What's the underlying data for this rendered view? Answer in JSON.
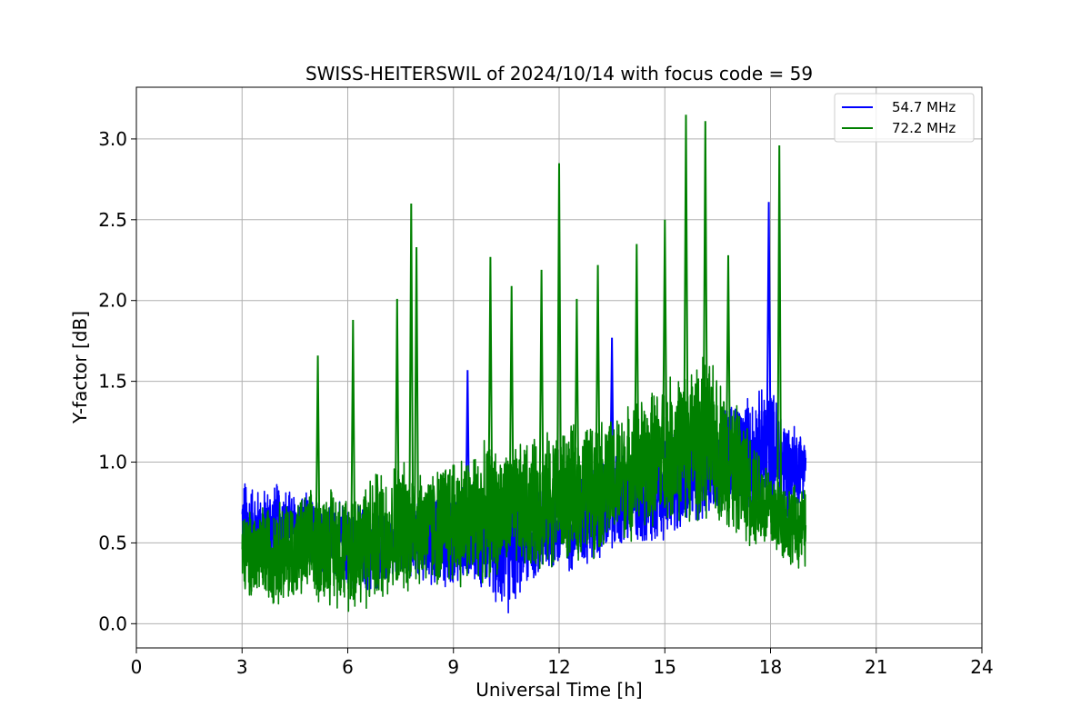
{
  "chart_data": {
    "type": "line",
    "title": "SWISS-HEITERSWIL of 2024/10/14 with focus code = 59",
    "xlabel": "Universal Time [h]",
    "ylabel": "Y-factor [dB]",
    "xlim": [
      0,
      24
    ],
    "ylim": [
      -0.15,
      3.32
    ],
    "xticks": [
      0,
      3,
      6,
      9,
      12,
      15,
      18,
      21,
      24
    ],
    "xtick_labels": [
      "0",
      "3",
      "6",
      "9",
      "12",
      "15",
      "18",
      "21",
      "24"
    ],
    "yticks": [
      0.0,
      0.5,
      1.0,
      1.5,
      2.0,
      2.5,
      3.0
    ],
    "ytick_labels": [
      "0.0",
      "0.5",
      "1.0",
      "1.5",
      "2.0",
      "2.5",
      "3.0"
    ],
    "grid": true,
    "legend_position": "top-right",
    "series": [
      {
        "name": "54.7 MHz",
        "color": "#0000ff",
        "x": [
          3.0,
          3.5,
          4.0,
          4.5,
          5.0,
          5.5,
          6.0,
          6.5,
          7.0,
          7.5,
          8.0,
          8.5,
          9.0,
          9.5,
          10.0,
          10.5,
          11.0,
          11.5,
          12.0,
          12.5,
          13.0,
          13.5,
          14.0,
          14.5,
          15.0,
          15.5,
          16.0,
          16.5,
          17.0,
          17.5,
          18.0,
          18.5,
          19.0
        ],
        "low": [
          0.25,
          0.3,
          0.3,
          0.3,
          0.3,
          0.3,
          0.2,
          0.15,
          0.2,
          0.25,
          0.25,
          0.2,
          0.2,
          0.25,
          0.15,
          0.0,
          0.2,
          0.25,
          0.3,
          0.3,
          0.35,
          0.4,
          0.45,
          0.45,
          0.5,
          0.55,
          0.6,
          0.65,
          0.7,
          0.65,
          0.7,
          0.6,
          0.8
        ],
        "high": [
          0.95,
          0.85,
          0.9,
          0.85,
          0.8,
          0.8,
          0.75,
          0.75,
          0.7,
          0.7,
          0.8,
          0.8,
          0.85,
          0.9,
          0.85,
          0.9,
          0.9,
          0.95,
          0.95,
          1.0,
          1.0,
          1.1,
          1.1,
          1.15,
          1.2,
          1.3,
          1.35,
          1.4,
          1.4,
          1.45,
          1.5,
          1.3,
          1.2
        ],
        "spikes": [
          {
            "x": 9.4,
            "y": 1.57
          },
          {
            "x": 13.5,
            "y": 1.77
          },
          {
            "x": 17.95,
            "y": 2.61
          }
        ]
      },
      {
        "name": "72.2 MHz",
        "color": "#008000",
        "x": [
          3.0,
          3.5,
          4.0,
          4.5,
          5.0,
          5.5,
          6.0,
          6.5,
          7.0,
          7.5,
          8.0,
          8.5,
          9.0,
          9.5,
          10.0,
          10.5,
          11.0,
          11.5,
          12.0,
          12.5,
          13.0,
          13.5,
          14.0,
          14.5,
          15.0,
          15.5,
          16.0,
          16.5,
          17.0,
          17.5,
          18.0,
          18.5,
          19.0
        ],
        "low": [
          0.15,
          0.1,
          0.1,
          0.1,
          0.1,
          0.1,
          0.05,
          0.05,
          0.1,
          0.15,
          0.2,
          0.2,
          0.2,
          0.2,
          0.25,
          0.3,
          0.3,
          0.3,
          0.35,
          0.35,
          0.4,
          0.45,
          0.5,
          0.55,
          0.6,
          0.6,
          0.6,
          0.6,
          0.5,
          0.45,
          0.4,
          0.35,
          0.3
        ],
        "high": [
          0.7,
          0.75,
          0.8,
          0.8,
          0.85,
          0.9,
          0.85,
          0.95,
          1.0,
          1.05,
          1.0,
          1.0,
          1.1,
          1.1,
          1.15,
          1.1,
          1.15,
          1.2,
          1.25,
          1.25,
          1.3,
          1.3,
          1.4,
          1.45,
          1.55,
          1.6,
          1.7,
          1.6,
          1.4,
          1.2,
          1.0,
          0.9,
          0.85
        ],
        "spikes": [
          {
            "x": 5.15,
            "y": 1.66
          },
          {
            "x": 6.15,
            "y": 1.88
          },
          {
            "x": 7.4,
            "y": 2.01
          },
          {
            "x": 7.8,
            "y": 2.6
          },
          {
            "x": 7.95,
            "y": 2.33
          },
          {
            "x": 10.05,
            "y": 2.27
          },
          {
            "x": 10.65,
            "y": 2.09
          },
          {
            "x": 11.5,
            "y": 2.19
          },
          {
            "x": 12.0,
            "y": 2.85
          },
          {
            "x": 12.5,
            "y": 2.01
          },
          {
            "x": 13.1,
            "y": 2.22
          },
          {
            "x": 14.2,
            "y": 2.35
          },
          {
            "x": 15.0,
            "y": 2.5
          },
          {
            "x": 15.6,
            "y": 3.15
          },
          {
            "x": 16.15,
            "y": 3.11
          },
          {
            "x": 16.8,
            "y": 2.28
          },
          {
            "x": 18.25,
            "y": 2.96
          }
        ]
      }
    ]
  }
}
